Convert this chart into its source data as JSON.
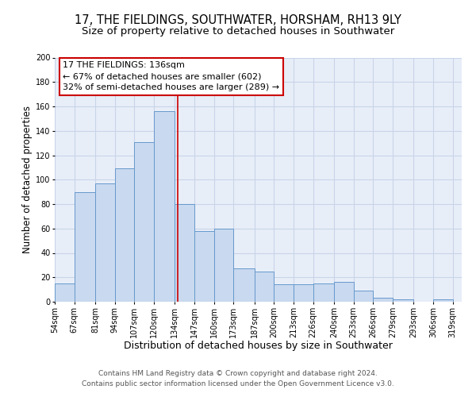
{
  "title_line1": "17, THE FIELDINGS, SOUTHWATER, HORSHAM, RH13 9LY",
  "title_line2": "Size of property relative to detached houses in Southwater",
  "xlabel": "Distribution of detached houses by size in Southwater",
  "ylabel": "Number of detached properties",
  "bar_left_edges": [
    54,
    67,
    81,
    94,
    107,
    120,
    134,
    147,
    160,
    173,
    187,
    200,
    213,
    226,
    240,
    253,
    266,
    279,
    293,
    306
  ],
  "bar_heights": [
    15,
    90,
    97,
    109,
    131,
    156,
    80,
    58,
    60,
    27,
    25,
    14,
    14,
    15,
    16,
    9,
    3,
    2,
    0,
    2
  ],
  "bin_widths": [
    13,
    14,
    13,
    13,
    13,
    14,
    13,
    13,
    13,
    14,
    13,
    13,
    13,
    14,
    13,
    13,
    13,
    14,
    13,
    13
  ],
  "bar_facecolor": "#c9d9ef",
  "bar_edgecolor": "#6699cc",
  "grid_color": "#c8d4e8",
  "background_color": "#e8eef8",
  "vline_x": 136,
  "vline_color": "#cc0000",
  "ylim": [
    0,
    200
  ],
  "yticks": [
    0,
    20,
    40,
    60,
    80,
    100,
    120,
    140,
    160,
    180,
    200
  ],
  "tick_labels": [
    "54sqm",
    "67sqm",
    "81sqm",
    "94sqm",
    "107sqm",
    "120sqm",
    "134sqm",
    "147sqm",
    "160sqm",
    "173sqm",
    "187sqm",
    "200sqm",
    "213sqm",
    "226sqm",
    "240sqm",
    "253sqm",
    "266sqm",
    "279sqm",
    "293sqm",
    "306sqm",
    "319sqm"
  ],
  "annotation_box_text": [
    "17 THE FIELDINGS: 136sqm",
    "← 67% of detached houses are smaller (602)",
    "32% of semi-detached houses are larger (289) →"
  ],
  "footer_line1": "Contains HM Land Registry data © Crown copyright and database right 2024.",
  "footer_line2": "Contains public sector information licensed under the Open Government Licence v3.0.",
  "title_fontsize": 10.5,
  "subtitle_fontsize": 9.5,
  "xlabel_fontsize": 9,
  "ylabel_fontsize": 8.5,
  "tick_fontsize": 7,
  "footer_fontsize": 6.5,
  "annot_fontsize": 8
}
